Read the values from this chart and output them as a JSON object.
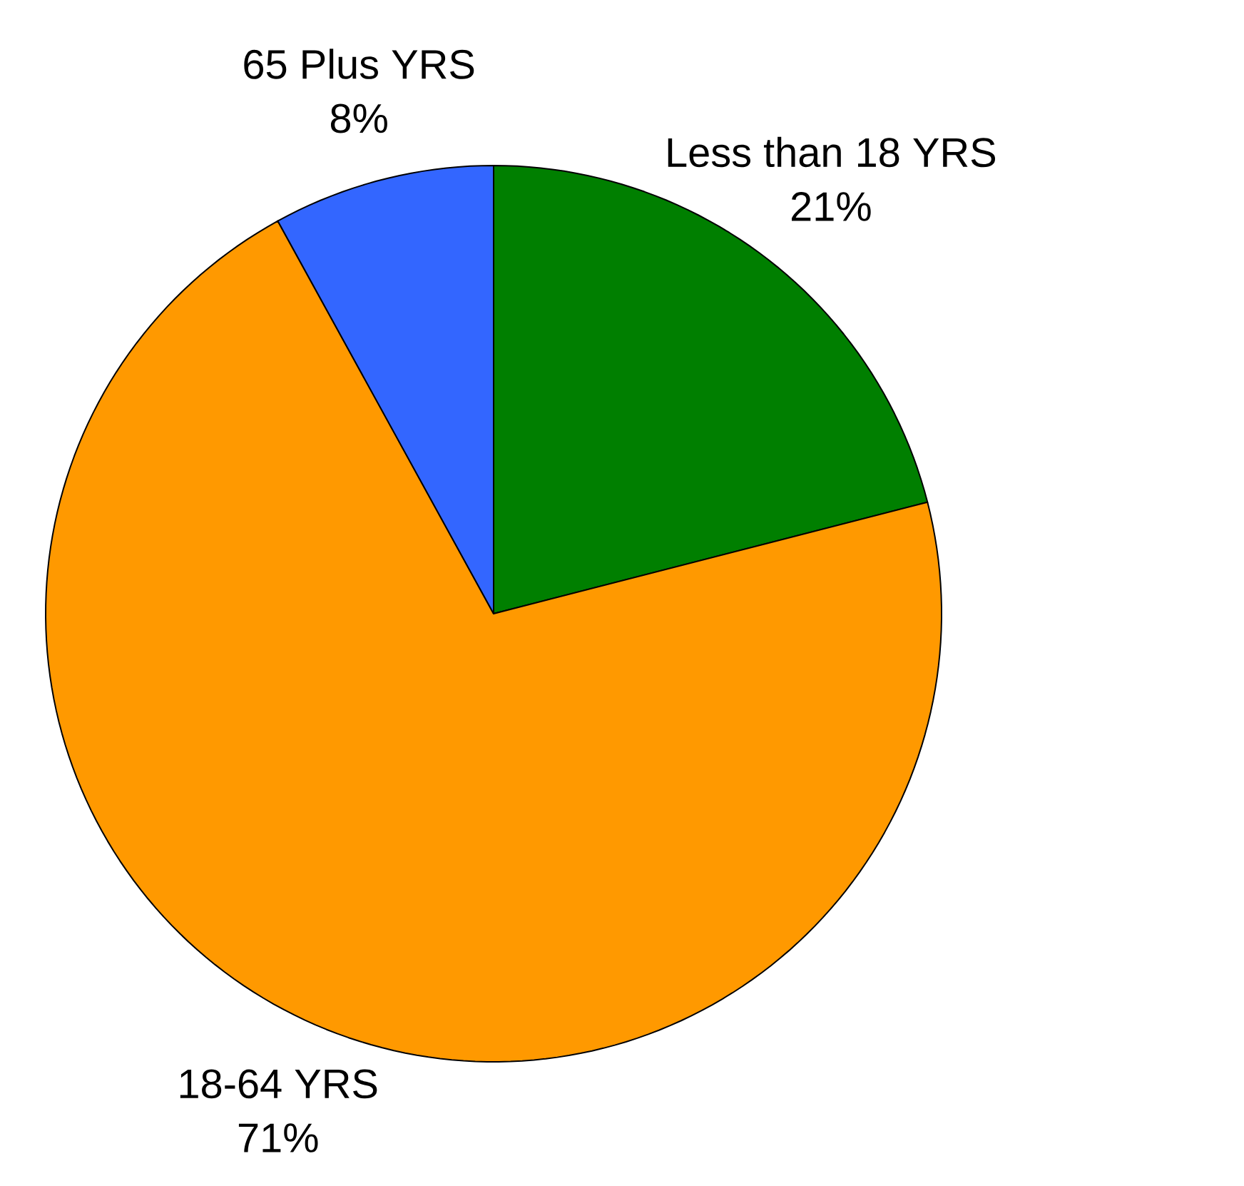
{
  "chart_data": {
    "type": "pie",
    "categories": [
      "Less than 18 YRS",
      "18-64 YRS",
      "65 Plus YRS"
    ],
    "values": [
      21,
      71,
      8
    ],
    "value_labels": [
      "21%",
      "71%",
      "8%"
    ],
    "colors": [
      "#007f00",
      "#ff9900",
      "#3366ff"
    ]
  }
}
